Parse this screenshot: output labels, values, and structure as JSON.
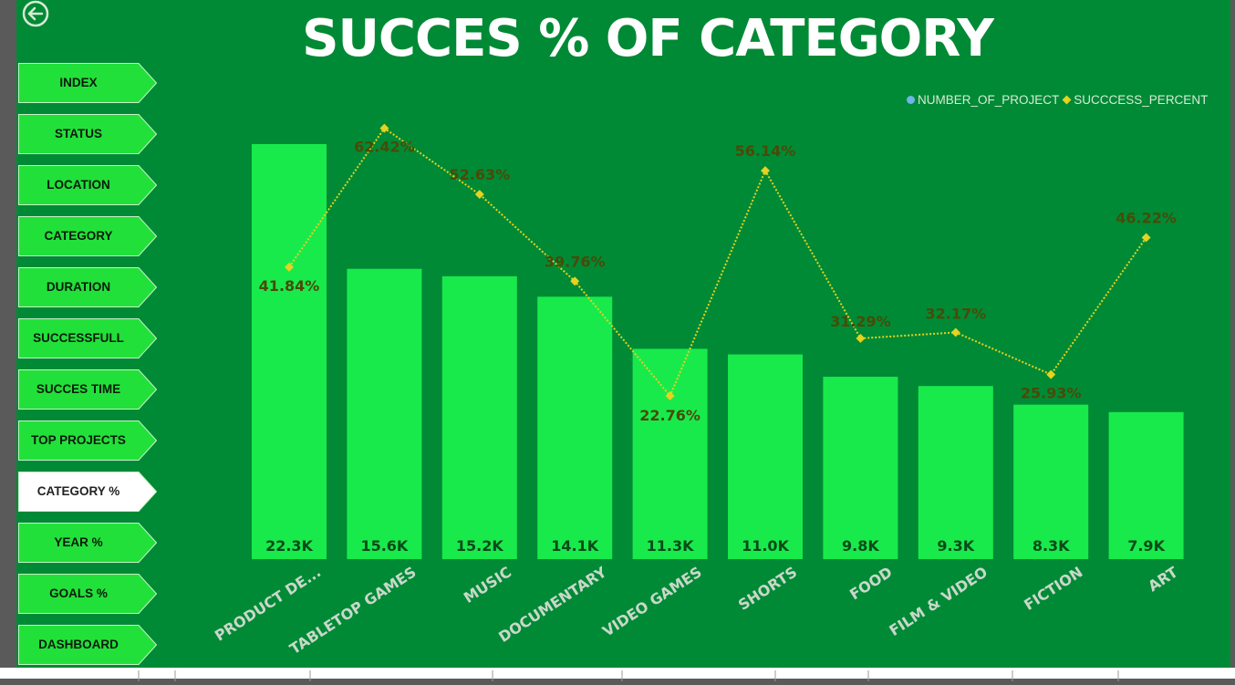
{
  "page": {
    "title": "SUCCES % OF CATEGORY"
  },
  "nav": {
    "items": [
      {
        "label": "INDEX",
        "active": false
      },
      {
        "label": "STATUS",
        "active": false
      },
      {
        "label": "LOCATION",
        "active": false
      },
      {
        "label": "CATEGORY",
        "active": false
      },
      {
        "label": "DURATION",
        "active": false
      },
      {
        "label": "SUCCESSFULL",
        "active": false
      },
      {
        "label": "SUCCES TIME",
        "active": false
      },
      {
        "label": "TOP PROJECTS",
        "active": false
      },
      {
        "label": "CATEGORY %",
        "active": true
      },
      {
        "label": "YEAR %",
        "active": false
      },
      {
        "label": "GOALS %",
        "active": false
      },
      {
        "label": "DASHBOARD",
        "active": false
      }
    ]
  },
  "icons": {
    "back": "back-arrow-icon"
  },
  "colors": {
    "background": "#018a35",
    "bar": "#18ea4c",
    "line": "#e6d21f",
    "nav_button": "#22e03a",
    "nav_active": "#ffffff",
    "legend_series1": "#6fb5e8"
  },
  "chart_data": {
    "type": "bar",
    "categories": [
      "PRODUCT DE...",
      "TABLETOP GAMES",
      "MUSIC",
      "DOCUMENTARY",
      "VIDEO GAMES",
      "SHORTS",
      "FOOD",
      "FILM & VIDEO",
      "FICTION",
      "ART"
    ],
    "series": [
      {
        "name": "NUMBER_OF_PROJECT",
        "type": "bar",
        "values": [
          22300,
          15600,
          15200,
          14100,
          11300,
          11000,
          9800,
          9300,
          8300,
          7900
        ],
        "labels": [
          "22.3K",
          "15.6K",
          "15.2K",
          "14.1K",
          "11.3K",
          "11.0K",
          "9.8K",
          "9.3K",
          "8.3K",
          "7.9K"
        ]
      },
      {
        "name": "SUCCCESS_PERCENT",
        "type": "line",
        "values": [
          41.84,
          62.42,
          52.63,
          39.76,
          22.76,
          56.14,
          31.29,
          32.17,
          25.93,
          46.22
        ],
        "labels": [
          "41.84%",
          "62.42%",
          "52.63%",
          "39.76%",
          "22.76%",
          "56.14%",
          "31.29%",
          "32.17%",
          "25.93%",
          "46.22%"
        ]
      }
    ],
    "legend_position": "top-right",
    "grid": false
  }
}
